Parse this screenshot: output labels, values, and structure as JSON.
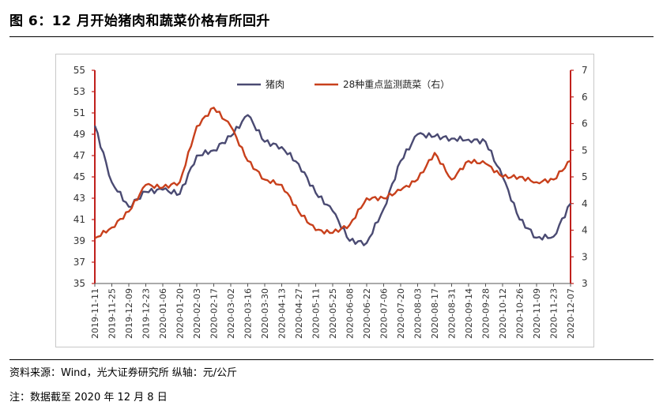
{
  "header": {
    "title": "图 6：12 月开始猪肉和蔬菜价格有所回升"
  },
  "footer": {
    "source": "资料来源：Wind，光大证券研究所   纵轴：元/公斤",
    "note": "注：数据截至 2020 年 12 月 8 日"
  },
  "chart_data": {
    "type": "line",
    "title": "",
    "y_left": {
      "ylim": [
        35,
        55
      ],
      "ticks": [
        "35",
        "37",
        "39",
        "41",
        "43",
        "45",
        "47",
        "49",
        "51",
        "53",
        "55"
      ]
    },
    "y_right": {
      "ylim": [
        3,
        7
      ],
      "ticks": [
        "3",
        "3",
        "4",
        "4",
        "5",
        "5",
        "6",
        "6",
        "7"
      ]
    },
    "x_ticks": [
      "2019-11-11",
      "2019-11-25",
      "2019-12-09",
      "2019-12-23",
      "2020-01-06",
      "2020-01-20",
      "2020-02-03",
      "2020-02-17",
      "2020-03-02",
      "2020-03-16",
      "2020-03-30",
      "2020-04-13",
      "2020-04-27",
      "2020-05-11",
      "2020-05-25",
      "2020-06-08",
      "2020-06-22",
      "2020-07-06",
      "2020-07-20",
      "2020-08-03",
      "2020-08-17",
      "2020-08-31",
      "2020-09-14",
      "2020-09-28",
      "2020-10-12",
      "2020-10-26",
      "2020-11-09",
      "2020-11-23",
      "2020-12-07"
    ],
    "grid": false,
    "legend_position": "top-center",
    "series": [
      {
        "name": "猪肉",
        "axis": "left",
        "color": "#4a4a72",
        "values": [
          49.8,
          44.5,
          42.2,
          43.6,
          43.8,
          43.4,
          47.0,
          47.5,
          48.8,
          50.8,
          48.3,
          47.8,
          46.2,
          43.5,
          41.8,
          39.0,
          38.8,
          42.0,
          46.5,
          49.0,
          48.8,
          48.6,
          48.5,
          48.3,
          45.0,
          41.0,
          39.3,
          39.4,
          42.5
        ]
      },
      {
        "name": "28种重点监测蔬菜（右）",
        "axis": "right",
        "color": "#c8401c",
        "values": [
          3.85,
          4.05,
          4.35,
          4.85,
          4.8,
          4.9,
          5.95,
          6.3,
          5.95,
          5.3,
          4.95,
          4.85,
          4.35,
          4.0,
          3.95,
          4.1,
          4.6,
          4.6,
          4.75,
          4.95,
          5.45,
          4.95,
          5.3,
          5.25,
          5.0,
          5.0,
          4.9,
          4.95,
          5.3
        ]
      }
    ]
  }
}
